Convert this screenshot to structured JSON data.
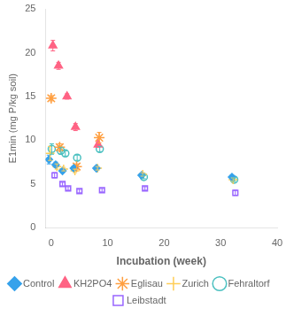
{
  "chart_data": {
    "type": "scatter",
    "xlabel": "Incubation (week)",
    "ylabel": "E1min (mg P/kg soil)",
    "xlim": [
      -1,
      40
    ],
    "ylim": [
      0,
      25
    ],
    "xticks": [
      0,
      10,
      20,
      30,
      40
    ],
    "yticks": [
      0,
      5,
      10,
      15,
      20,
      25
    ],
    "grid": false,
    "legend": "bottom",
    "series": [
      {
        "name": "Control",
        "marker": "diamond",
        "x": [
          -0.4,
          0.8,
          2.0,
          4.0,
          8.0,
          16.0,
          32.0
        ],
        "values": [
          7.8,
          7.2,
          6.5,
          6.8,
          6.8,
          6.0,
          5.8
        ],
        "yerr": [
          0.5,
          0.3,
          0.2,
          0.2,
          0.2,
          0.2,
          0.2
        ]
      },
      {
        "name": "KH2PO4",
        "marker": "triangle",
        "x": [
          0.3,
          1.3,
          2.8,
          4.3,
          8.3
        ],
        "values": [
          20.8,
          18.5,
          15.0,
          11.5,
          9.5
        ],
        "yerr": [
          0.6,
          0.4,
          0.3,
          0.4,
          0.3
        ]
      },
      {
        "name": "Eglisau",
        "marker": "star",
        "x": [
          0.0,
          1.5,
          4.5,
          8.5
        ],
        "values": [
          14.8,
          9.2,
          7.0,
          10.3
        ],
        "yerr": [
          0.3,
          0.4,
          0.3,
          0.6
        ]
      },
      {
        "name": "Zurich",
        "marker": "cross",
        "x": [
          -0.2,
          1.0,
          2.2,
          4.2,
          8.2,
          16.2,
          32.2
        ],
        "values": [
          8.5,
          7.0,
          6.7,
          6.5,
          6.8,
          6.1,
          5.5
        ],
        "yerr": [
          0.8,
          0.3,
          0.2,
          0.2,
          0.2,
          0.2,
          0.2
        ]
      },
      {
        "name": "Fehraltorf",
        "marker": "circle-open",
        "x": [
          0.1,
          1.7,
          2.5,
          4.6,
          8.6,
          16.4,
          32.4
        ],
        "values": [
          9.0,
          8.8,
          8.5,
          8.0,
          9.0,
          5.8,
          5.5
        ],
        "yerr": [
          0.6,
          0.4,
          0.3,
          0.3,
          0.3,
          0.2,
          0.2
        ]
      },
      {
        "name": "Leibstadt",
        "marker": "square-open",
        "x": [
          0.6,
          2.0,
          3.0,
          5.0,
          9.0,
          16.6,
          32.6
        ],
        "values": [
          6.0,
          5.0,
          4.5,
          4.2,
          4.3,
          4.5,
          4.0
        ],
        "yerr": [
          0.3,
          0.2,
          0.2,
          0.2,
          0.2,
          0.2,
          0.3
        ]
      }
    ]
  }
}
